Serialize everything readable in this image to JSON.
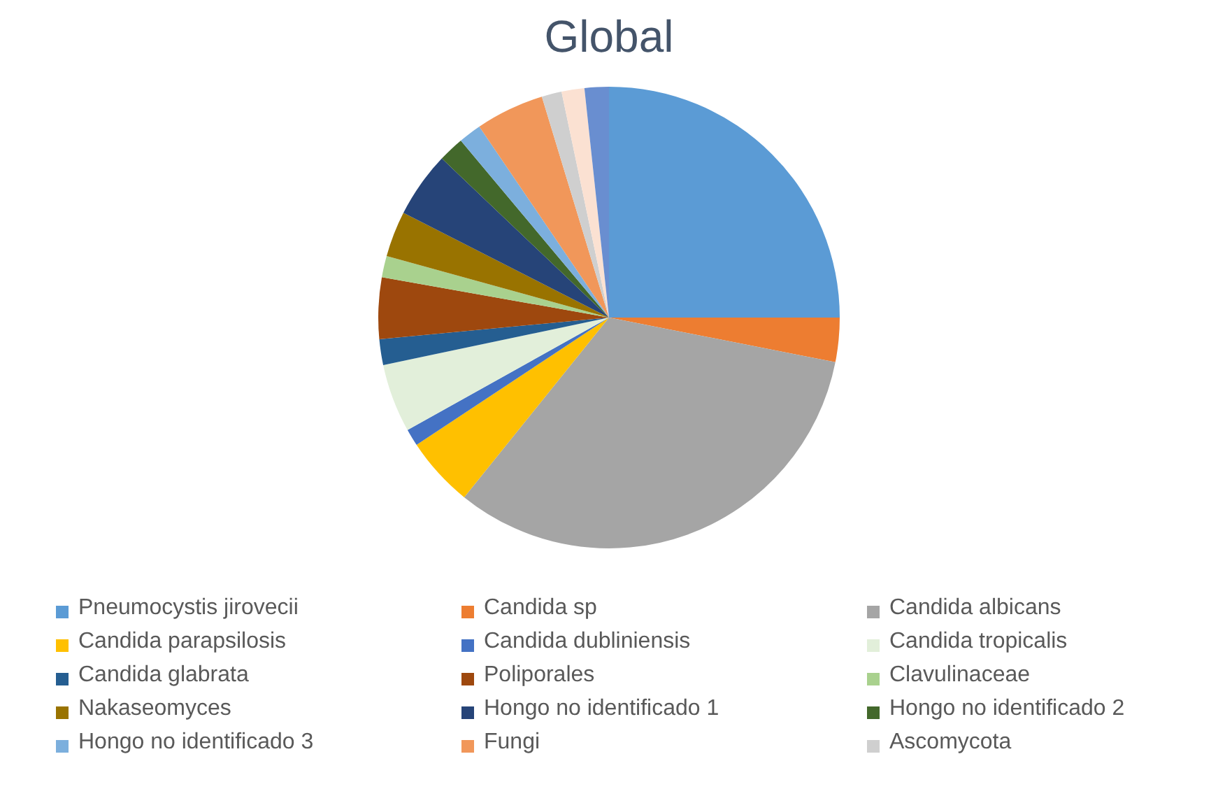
{
  "chart_data": {
    "type": "pie",
    "title": "Global",
    "categories": [
      "Pneumocystis jirovecii",
      "Candida sp",
      "Candida albicans",
      "Candida parapsilosis",
      "Candida dubliniensis",
      "Candida tropicalis",
      "Candida glabrata",
      "Poliporales",
      "Clavulinaceae",
      "Nakaseomyces",
      "Hongo no identificado 1",
      "Hongo no identificado 2",
      "Hongo no identificado 3",
      "Fungi",
      "Ascomycota",
      null,
      null
    ],
    "values": [
      25,
      3.1,
      32.7,
      4.9,
      1.2,
      4.8,
      1.8,
      4.3,
      1.5,
      3.2,
      4.6,
      1.8,
      1.6,
      4.8,
      1.4,
      1.6,
      1.7
    ],
    "colors": [
      "#5b9bd5",
      "#ed7d31",
      "#a5a5a5",
      "#ffc000",
      "#4472c4",
      "#e2efda",
      "#255e91",
      "#9e480e",
      "#a9d18e",
      "#997300",
      "#264478",
      "#43682b",
      "#7cafdd",
      "#f1975a",
      "#cfcfcf",
      "#fbe1d2",
      "#698ed0"
    ],
    "legend": "bottom"
  }
}
